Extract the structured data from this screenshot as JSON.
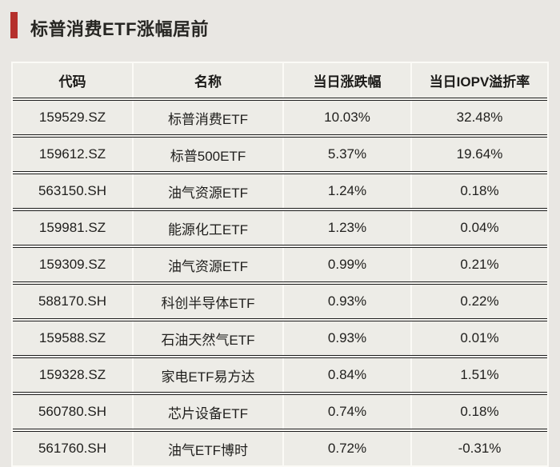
{
  "page": {
    "title": "标普消费ETF涨幅居前",
    "accent_color": "#b5302c",
    "background_color": "#e9e7e3"
  },
  "table": {
    "headers": [
      "代码",
      "名称",
      "当日涨跌幅",
      "当日IOPV溢折率"
    ],
    "rows": [
      {
        "code": "159529.SZ",
        "name": "标普消费ETF",
        "change": "10.03%",
        "iopv": "32.48%"
      },
      {
        "code": "159612.SZ",
        "name": "标普500ETF",
        "change": "5.37%",
        "iopv": "19.64%"
      },
      {
        "code": "563150.SH",
        "name": "油气资源ETF",
        "change": "1.24%",
        "iopv": "0.18%"
      },
      {
        "code": "159981.SZ",
        "name": "能源化工ETF",
        "change": "1.23%",
        "iopv": "0.04%"
      },
      {
        "code": "159309.SZ",
        "name": "油气资源ETF",
        "change": "0.99%",
        "iopv": "0.21%"
      },
      {
        "code": "588170.SH",
        "name": "科创半导体ETF",
        "change": "0.93%",
        "iopv": "0.22%"
      },
      {
        "code": "159588.SZ",
        "name": "石油天然气ETF",
        "change": "0.93%",
        "iopv": "0.01%"
      },
      {
        "code": "159328.SZ",
        "name": "家电ETF易方达",
        "change": "0.84%",
        "iopv": "1.51%"
      },
      {
        "code": "560780.SH",
        "name": "芯片设备ETF",
        "change": "0.74%",
        "iopv": "0.18%"
      },
      {
        "code": "561760.SH",
        "name": "油气ETF博时",
        "change": "0.72%",
        "iopv": "-0.31%"
      }
    ]
  },
  "chart_data": {
    "type": "table",
    "title": "标普消费ETF涨幅居前",
    "columns": [
      "代码",
      "名称",
      "当日涨跌幅",
      "当日IOPV溢折率"
    ],
    "rows": [
      [
        "159529.SZ",
        "标普消费ETF",
        "10.03%",
        "32.48%"
      ],
      [
        "159612.SZ",
        "标普500ETF",
        "5.37%",
        "19.64%"
      ],
      [
        "563150.SH",
        "油气资源ETF",
        "1.24%",
        "0.18%"
      ],
      [
        "159981.SZ",
        "能源化工ETF",
        "1.23%",
        "0.04%"
      ],
      [
        "159309.SZ",
        "油气资源ETF",
        "0.99%",
        "0.21%"
      ],
      [
        "588170.SH",
        "科创半导体ETF",
        "0.93%",
        "0.22%"
      ],
      [
        "159588.SZ",
        "石油天然气ETF",
        "0.93%",
        "0.01%"
      ],
      [
        "159328.SZ",
        "家电ETF易方达",
        "0.84%",
        "1.51%"
      ],
      [
        "560780.SH",
        "芯片设备ETF",
        "0.74%",
        "0.18%"
      ],
      [
        "561760.SH",
        "油气ETF博时",
        "0.72%",
        "-0.31%"
      ]
    ]
  }
}
